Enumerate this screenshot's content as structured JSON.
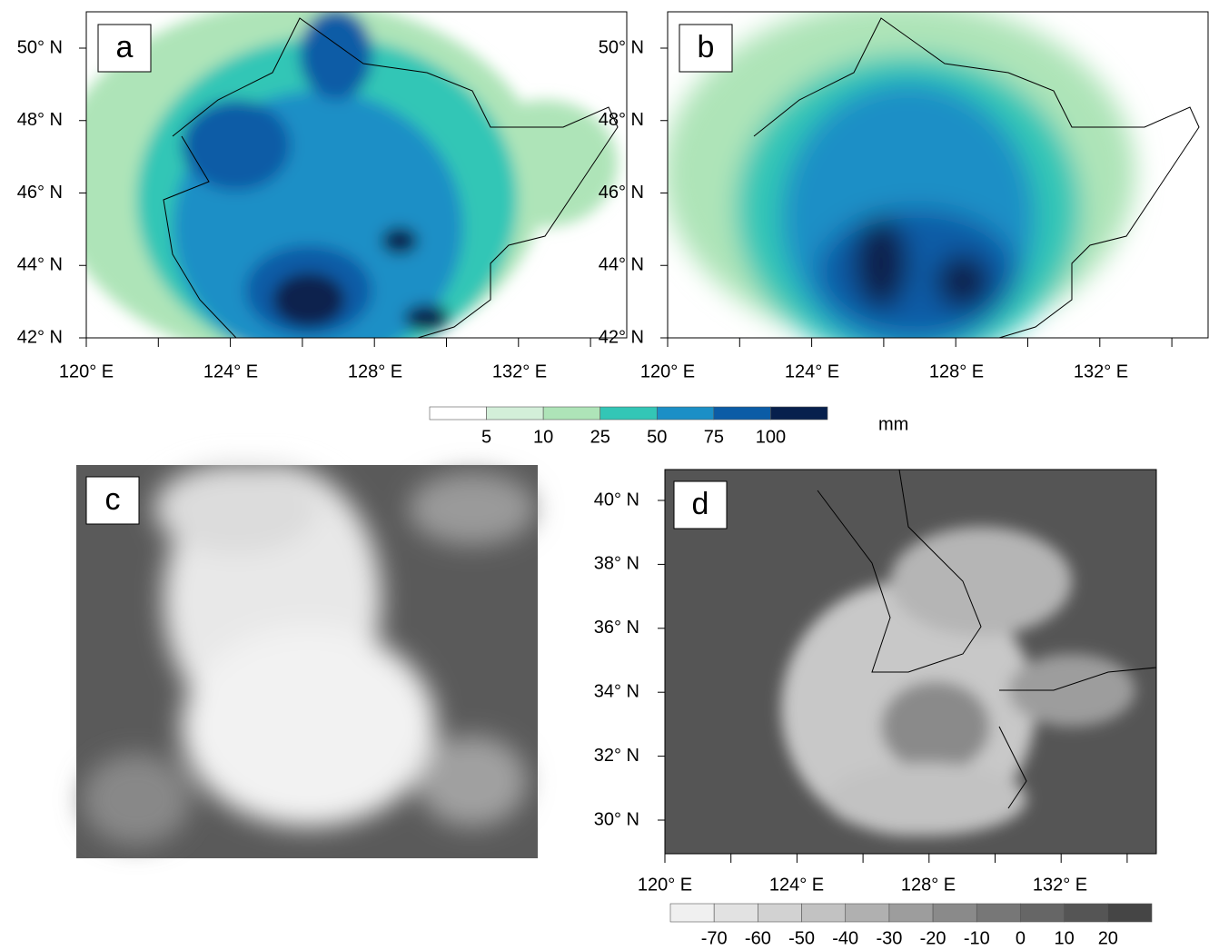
{
  "panels": {
    "a": {
      "label": "a"
    },
    "b": {
      "label": "b"
    },
    "c": {
      "label": "c"
    },
    "d": {
      "label": "d"
    }
  },
  "top_maps": {
    "lat_labels": [
      "50° N",
      "48° N",
      "46° N",
      "44° N",
      "42° N"
    ],
    "lon_labels": [
      "120° E",
      "124° E",
      "128° E",
      "132° E"
    ]
  },
  "precip_colorbar": {
    "labels": [
      "5",
      "10",
      "25",
      "50",
      "75",
      "100"
    ],
    "colors": [
      "#ffffff",
      "#d3efd9",
      "#aee4b8",
      "#33c6b6",
      "#1b8fc6",
      "#0b5ca6",
      "#07204d"
    ],
    "unit": "mm"
  },
  "bottom_map": {
    "lat_labels": [
      "40° N",
      "38° N",
      "36° N",
      "34° N",
      "32° N",
      "30° N"
    ],
    "lon_labels": [
      "120° E",
      "124° E",
      "128° E",
      "132° E"
    ]
  },
  "tb_colorbar": {
    "labels": [
      "-70",
      "-60",
      "-50",
      "-40",
      "-30",
      "-20",
      "-10",
      "0",
      "10",
      "20"
    ],
    "colors": [
      "#f0f0f0",
      "#e2e2e2",
      "#d2d2d2",
      "#c2c2c2",
      "#b0b0b0",
      "#9d9d9d",
      "#8a8a8a",
      "#777777",
      "#666666",
      "#555555",
      "#454545"
    ]
  }
}
